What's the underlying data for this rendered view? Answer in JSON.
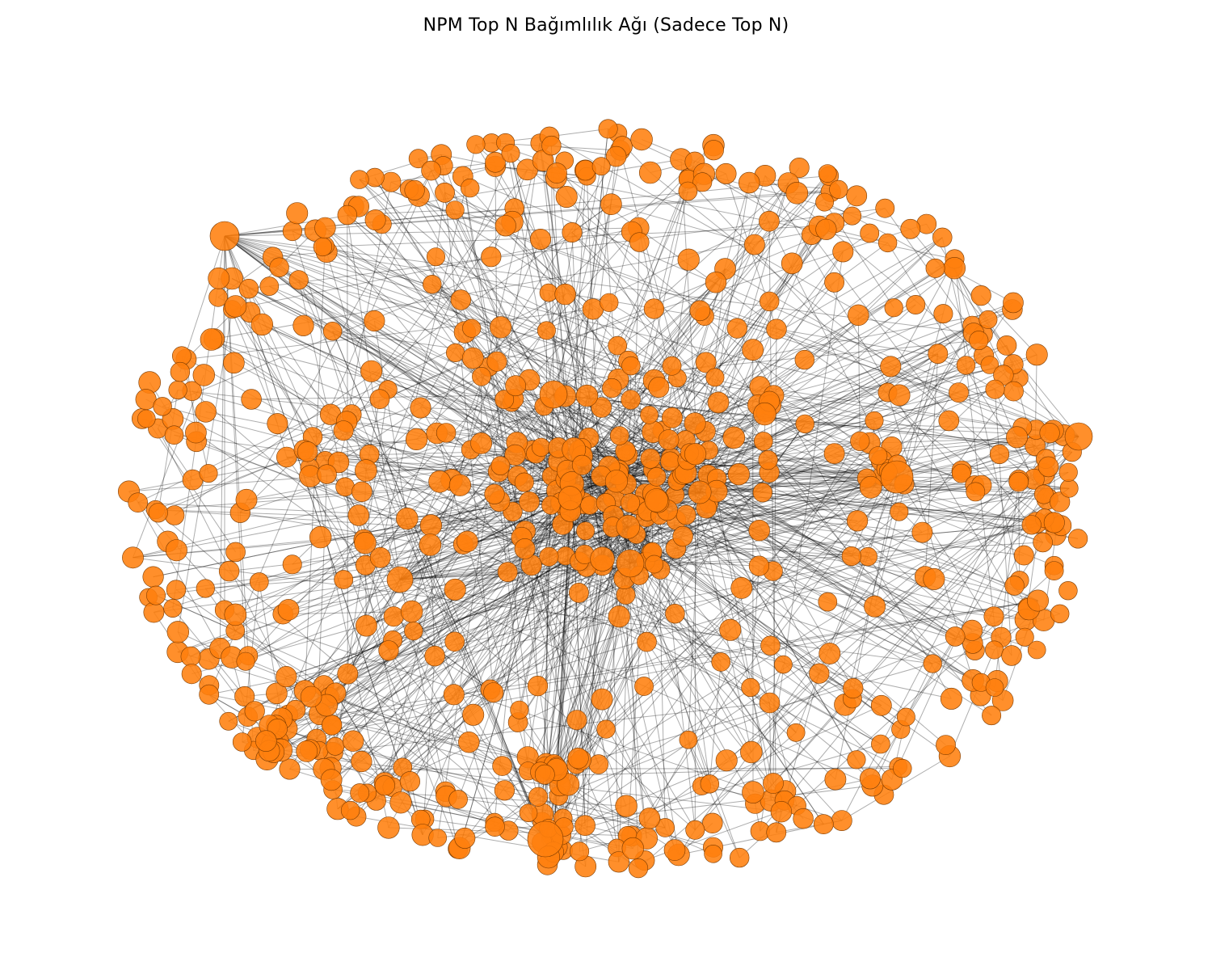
{
  "title": "NPM Top N Bağımlılık Ağı (Sadece Top N)",
  "colors": {
    "node_fill": "#ff7f0e",
    "node_stroke": "#7a3a00",
    "edge": "#000000",
    "background": "#ffffff"
  },
  "network": {
    "type": "network-graph",
    "layout": "force-directed",
    "node_shape": "circle",
    "node_opacity": 0.88,
    "edge_opacity": 0.32
  }
}
